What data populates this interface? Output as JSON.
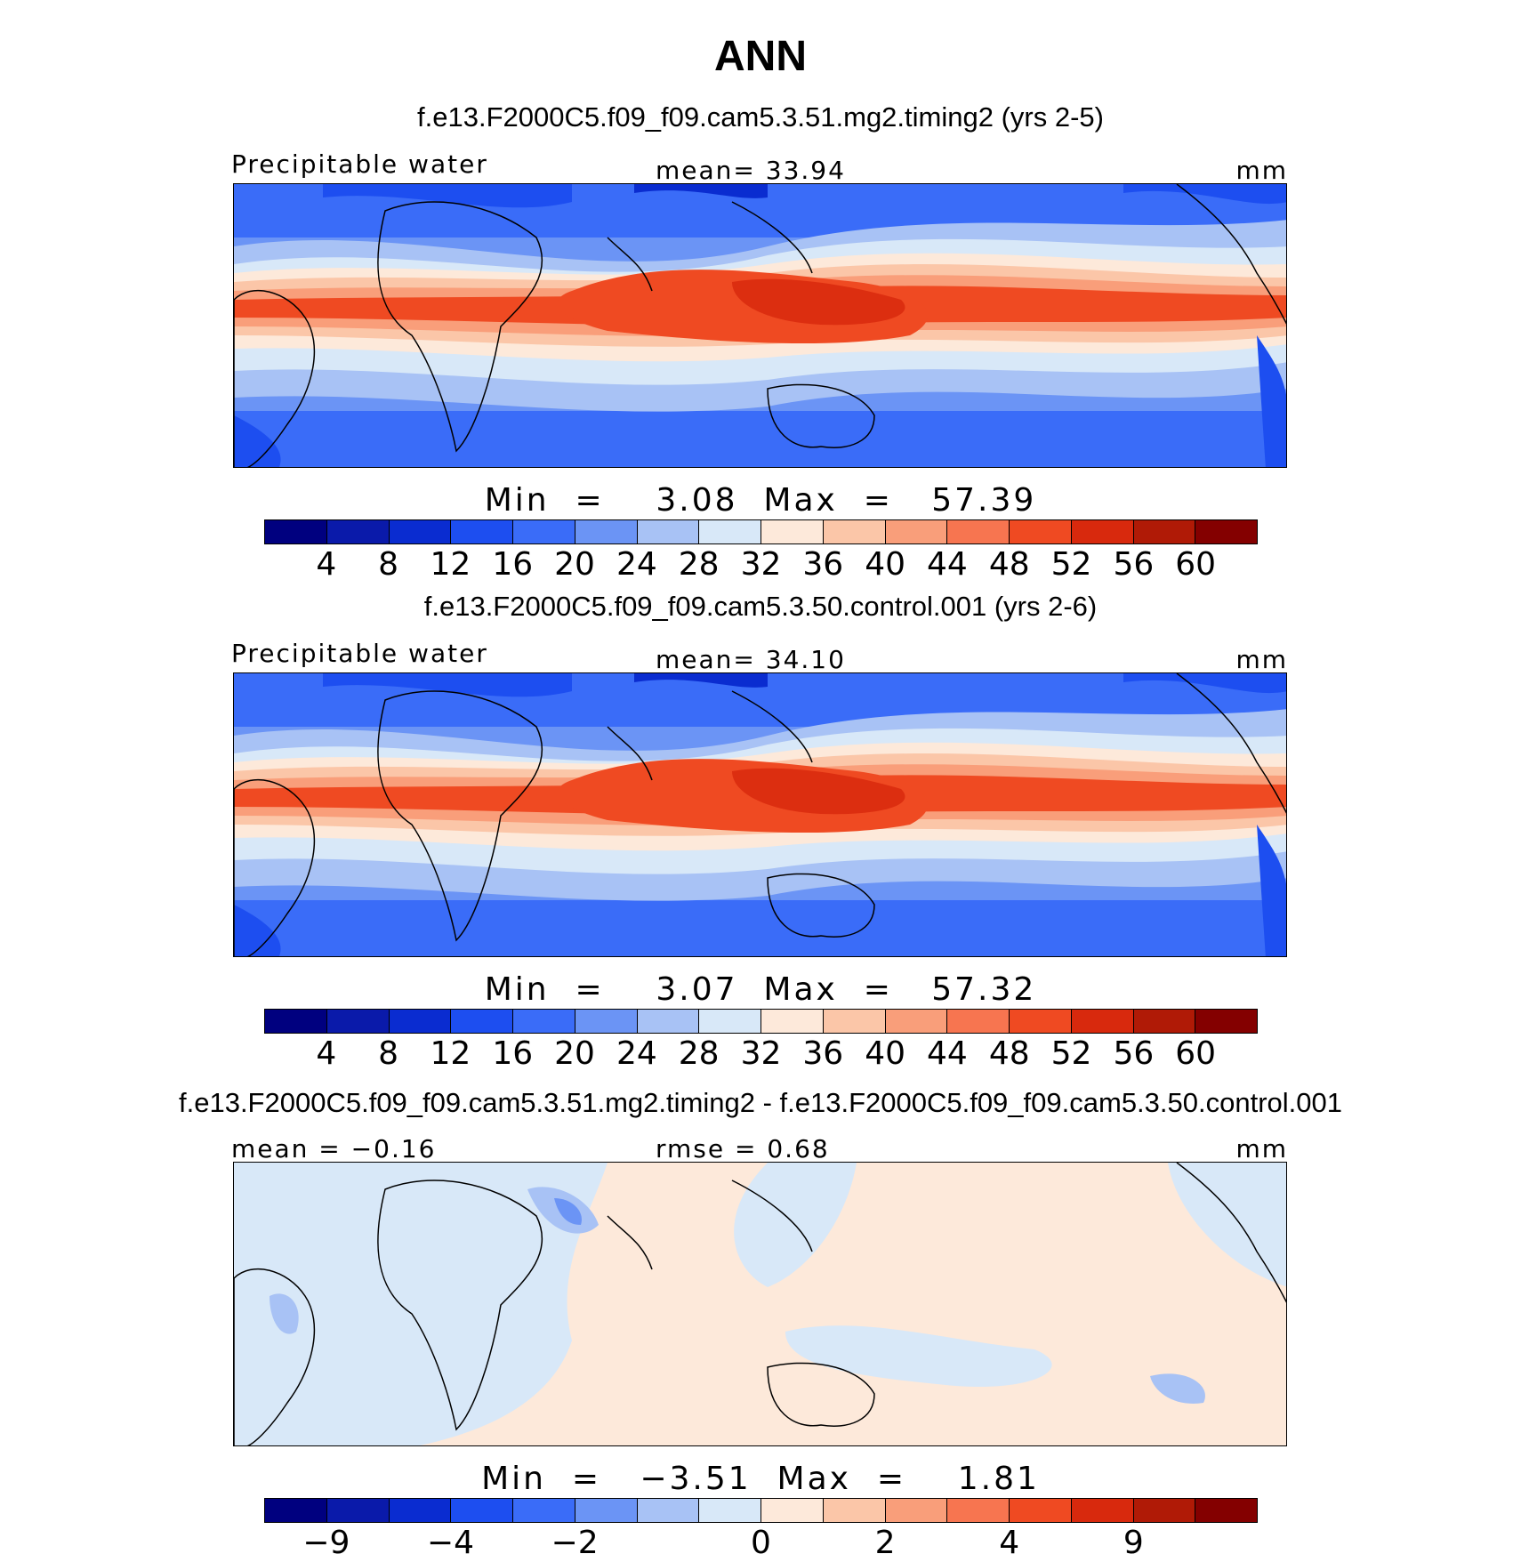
{
  "title": "ANN",
  "colors": [
    "#00007f",
    "#0a1aaa",
    "#0a2cd0",
    "#1d4ef0",
    "#3a6cf8",
    "#6b94f5",
    "#a8c2f5",
    "#d8e8f8",
    "#fde9da",
    "#fbc6a8",
    "#f99e7a",
    "#f77550",
    "#ef4a22",
    "#d8290d",
    "#b01a06",
    "#840000"
  ],
  "panels": [
    {
      "run_title": "f.e13.F2000C5.f09_f09.cam5.3.51.mg2.timing2 (yrs 2-5)",
      "left_label": "Precipitable water",
      "center_label": "mean=   33.94",
      "unit": "mm",
      "minmax": "Min  =    3.08  Max  =   57.39",
      "ticks": [
        "4",
        "8",
        "12",
        "16",
        "20",
        "24",
        "28",
        "32",
        "36",
        "40",
        "44",
        "48",
        "52",
        "56",
        "60"
      ]
    },
    {
      "run_title": "f.e13.F2000C5.f09_f09.cam5.3.50.control.001 (yrs 2-6)",
      "left_label": "Precipitable water",
      "center_label": "mean=   34.10",
      "unit": "mm",
      "minmax": "Min  =    3.07  Max  =   57.32",
      "ticks": [
        "4",
        "8",
        "12",
        "16",
        "20",
        "24",
        "28",
        "32",
        "36",
        "40",
        "44",
        "48",
        "52",
        "56",
        "60"
      ]
    },
    {
      "run_title": "f.e13.F2000C5.f09_f09.cam5.3.51.mg2.timing2 - f.e13.F2000C5.f09_f09.cam5.3.50.control.001",
      "left_label": "mean  =   −0.16",
      "center_label": "rmse  =    0.68",
      "unit": "mm",
      "minmax": "Min  =   −3.51  Max  =    1.81",
      "ticks": [
        "−9",
        "−4",
        "−2",
        "0",
        "2",
        "4",
        "9"
      ]
    }
  ]
}
